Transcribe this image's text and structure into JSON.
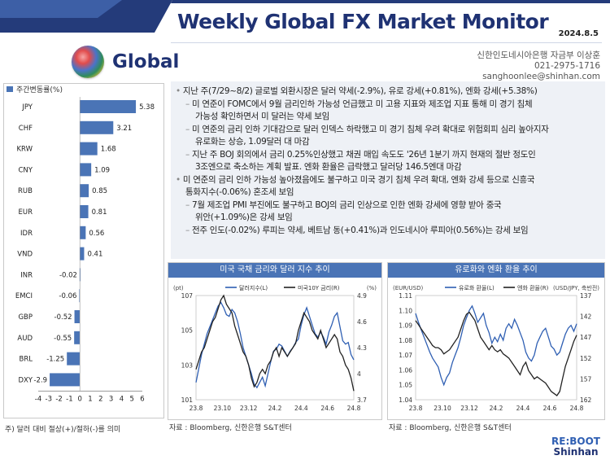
{
  "header": {
    "title": "Weekly Global FX Market Monitor",
    "date": "2024.8.5",
    "section": "Global"
  },
  "contact": {
    "line1": "신한인도네시아은행 자금부 이상훈",
    "line2": "021-2975-1716",
    "line3": "sanghoonlee@shinhan.com"
  },
  "left_note": "주) 달러 대비 절상(+)/절하(-)를 의미",
  "bullets": [
    {
      "marker": "•",
      "text": "지난 주(7/29~8/2) 글로벌 외환시장은 달러 약세(-2.9%), 유로 강세(+0.81%), 엔화 강세(+5.38%)"
    },
    {
      "marker": "–",
      "text": "미 연준이 FOMC에서 9월 금리인하 가능성 언급했고 미 고용 지표와 제조업 지표 통해 미 경기 침체"
    },
    {
      "marker": "",
      "text": "가능성 확인하면서 미 달러는 약세 보임"
    },
    {
      "marker": "–",
      "text": "미 연준의 금리 인하 기대감으로 달러 인덱스 하락했고 미 경기 침체 우려 확대로 위험회피 심리 높아지자"
    },
    {
      "marker": "",
      "text": "유로화는 상승, 1.09달러 대 마감"
    },
    {
      "marker": "–",
      "text": "지난 주 BOJ 회의에서 금리 0.25%인상했고 채권 매입 속도도 '26년 1분기 까지 현재의 절반 정도인"
    },
    {
      "marker": "",
      "text": "3조엔으로 축소하는 계획 발표. 엔화 환율은 급락했고 달러당 146.5엔대 마감"
    },
    {
      "marker": "•",
      "text": "미 연준의 금리 인하 가능성 높아졌음에도 불구하고 미국 경기 침체 우려 확대, 엔화 강세 등으로 신흥국"
    },
    {
      "marker": "",
      "text": "통화지수(-0.06%) 혼조세 보임"
    },
    {
      "marker": "–",
      "text": "7월 제조업 PMI 부진에도 불구하고 BOJ의 금리 인상으로 인한 엔화 강세에 영향 받아 중국"
    },
    {
      "marker": "",
      "text": "위안(+1.09%)은 강세 보임"
    },
    {
      "marker": "–",
      "text": "전주 인도(-0.02%) 루피는 약세, 베트남 동(+0.41%)과 인도네시아 루피아(0.56%)는 강세 보임"
    }
  ],
  "source1": "자료 : Bloomberg, 신한은행 S&T센터",
  "source2": "자료 : Bloomberg, 신한은행 S&T센터",
  "logo": {
    "line1": "RE:BOOT",
    "line2": "Shinhan"
  },
  "chart_data": [
    {
      "type": "bar",
      "orientation": "horizontal",
      "legend": "주간변동률(%)",
      "categories": [
        "JPY",
        "CHF",
        "KRW",
        "CNY",
        "RUB",
        "EUR",
        "IDR",
        "VND",
        "INR",
        "EMCI",
        "GBP",
        "AUD",
        "BRL",
        "DXY"
      ],
      "values": [
        5.38,
        3.21,
        1.68,
        1.09,
        0.85,
        0.81,
        0.56,
        0.41,
        -0.02,
        -0.06,
        -0.52,
        -0.55,
        -1.25,
        -2.9
      ],
      "value_labels": [
        "5.38",
        "3.21",
        "1.68",
        "1.09",
        "0.85",
        "0.81",
        "0.56",
        "0.41",
        "-0.02",
        "-0.06",
        "-0.52",
        "-0.55",
        "-1.25",
        "-2.9"
      ],
      "xlim": [
        -4,
        6
      ],
      "xticks": [
        "-4",
        "-3",
        "-2",
        "-1",
        "0",
        "1",
        "2",
        "3",
        "4",
        "5",
        "6"
      ],
      "bar_color": "#4a74b6"
    },
    {
      "type": "line",
      "title": "미국 국채 금리와 달러 지수 추이",
      "left_unit": "(pt)",
      "right_unit": "(%)",
      "x_ticks": [
        "23.8",
        "23.10",
        "23.12",
        "24.2",
        "24.4",
        "24.6",
        "24.8"
      ],
      "y_left_ticks": [
        "107",
        "105",
        "103",
        "101"
      ],
      "y_right_ticks": [
        "4.9",
        "4.6",
        "4.3",
        "4",
        "3.7"
      ],
      "ylim_left": [
        101,
        107
      ],
      "ylim_right": [
        3.7,
        4.9
      ],
      "series": [
        {
          "name": "달러지수(L)",
          "color": "#2f5fb3",
          "axis": "left",
          "values": [
            102.0,
            102.8,
            103.6,
            104.2,
            104.8,
            105.2,
            105.6,
            106.0,
            106.4,
            106.6,
            106.3,
            105.9,
            105.8,
            106.2,
            106.0,
            105.5,
            104.8,
            104.0,
            103.5,
            103.0,
            102.5,
            101.9,
            101.7,
            102.0,
            102.3,
            101.8,
            102.5,
            103.2,
            103.8,
            103.9,
            104.2,
            104.1,
            103.8,
            103.5,
            103.8,
            104.0,
            104.3,
            104.5,
            105.3,
            105.9,
            106.3,
            105.8,
            105.3,
            104.8,
            104.6,
            104.9,
            104.6,
            104.2,
            104.9,
            105.3,
            105.8,
            106.0,
            105.2,
            104.4,
            104.2,
            104.3,
            103.6,
            103.3
          ]
        },
        {
          "name": "미국10Y 금리(R)",
          "color": "#222222",
          "axis": "right",
          "values": [
            4.05,
            4.15,
            4.25,
            4.3,
            4.4,
            4.5,
            4.6,
            4.65,
            4.75,
            4.85,
            4.9,
            4.8,
            4.75,
            4.7,
            4.55,
            4.45,
            4.35,
            4.25,
            4.2,
            4.1,
            3.95,
            3.85,
            3.9,
            4.0,
            4.05,
            4.0,
            4.1,
            4.15,
            4.25,
            4.3,
            4.2,
            4.3,
            4.25,
            4.2,
            4.25,
            4.3,
            4.35,
            4.5,
            4.6,
            4.7,
            4.65,
            4.6,
            4.5,
            4.45,
            4.4,
            4.5,
            4.4,
            4.3,
            4.35,
            4.4,
            4.45,
            4.4,
            4.25,
            4.2,
            4.1,
            4.05,
            3.95,
            3.8
          ]
        }
      ]
    },
    {
      "type": "line",
      "title": "유로화와 엔화 환율 추이",
      "left_unit": "(EUR/USD)",
      "right_unit": "(USD/JPY, 축반전)",
      "x_ticks": [
        "23.8",
        "23.10",
        "23.12",
        "24.2",
        "24.4",
        "24.6",
        "24.8"
      ],
      "y_left_ticks": [
        "1.11",
        "1.10",
        "1.09",
        "1.08",
        "1.07",
        "1.06",
        "1.05",
        "1.04"
      ],
      "y_right_ticks": [
        "137",
        "142",
        "147",
        "152",
        "157",
        "162"
      ],
      "ylim_left": [
        1.04,
        1.11
      ],
      "ylim_right": [
        137,
        162
      ],
      "series": [
        {
          "name": "유로화 환율(L)",
          "color": "#2f5fb3",
          "axis": "left",
          "values": [
            1.098,
            1.092,
            1.087,
            1.082,
            1.077,
            1.072,
            1.068,
            1.065,
            1.062,
            1.055,
            1.05,
            1.055,
            1.058,
            1.065,
            1.07,
            1.075,
            1.082,
            1.09,
            1.095,
            1.1,
            1.103,
            1.098,
            1.092,
            1.095,
            1.098,
            1.09,
            1.085,
            1.078,
            1.082,
            1.079,
            1.084,
            1.08,
            1.088,
            1.091,
            1.088,
            1.094,
            1.09,
            1.085,
            1.08,
            1.072,
            1.068,
            1.066,
            1.07,
            1.078,
            1.082,
            1.086,
            1.088,
            1.082,
            1.076,
            1.074,
            1.07,
            1.072,
            1.078,
            1.084,
            1.088,
            1.09,
            1.086,
            1.091
          ]
        },
        {
          "name": "엔화 환율(R)",
          "color": "#222222",
          "axis": "right",
          "values": [
            143,
            144,
            145,
            146,
            147,
            148,
            149,
            149.5,
            149.5,
            150,
            151,
            150.5,
            150,
            149,
            148,
            147,
            145,
            143,
            141.5,
            141,
            142,
            143,
            145,
            147,
            148,
            149,
            150,
            149,
            150,
            150.5,
            150,
            151,
            151.5,
            152,
            153,
            154,
            155,
            156,
            154,
            153,
            155,
            156,
            157,
            156.5,
            157,
            157.5,
            158,
            159,
            160,
            160.5,
            161,
            160,
            157,
            154,
            152,
            150,
            148,
            146.5
          ]
        }
      ]
    }
  ]
}
